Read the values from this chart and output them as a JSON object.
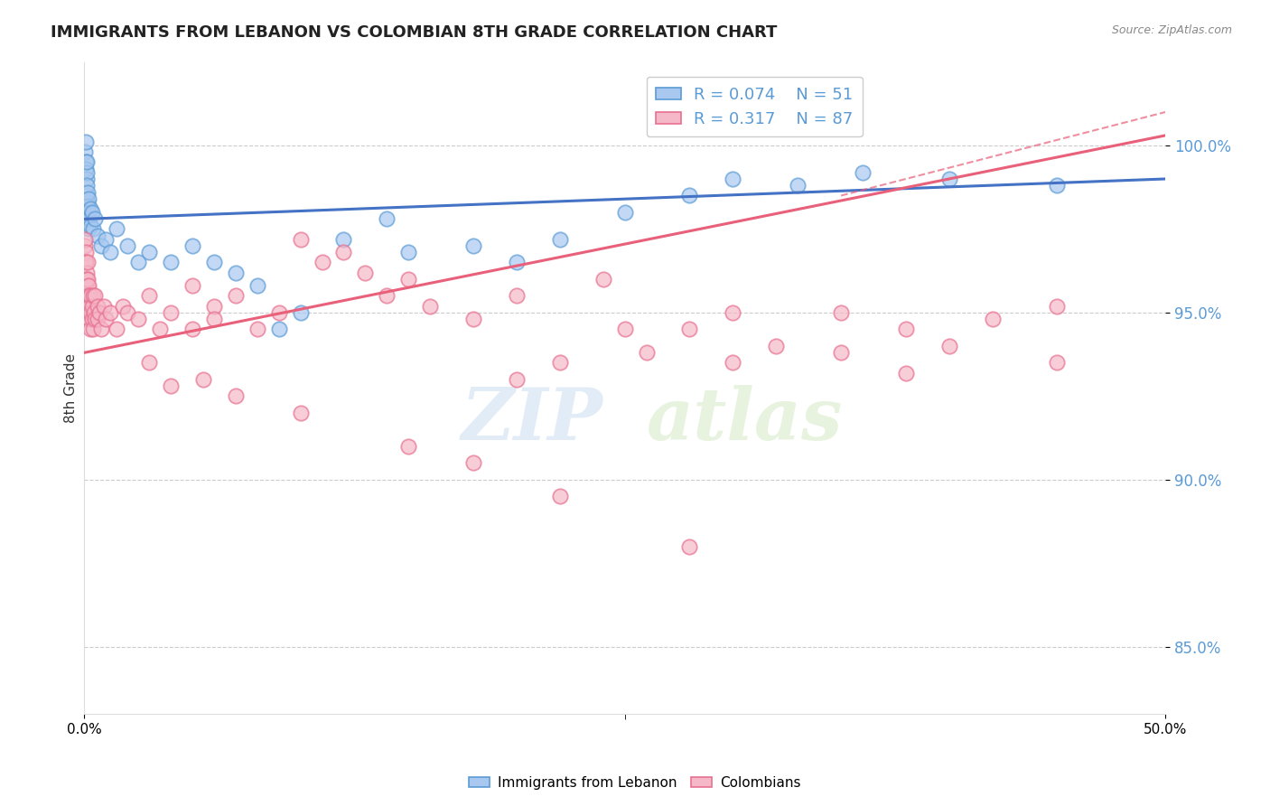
{
  "title": "IMMIGRANTS FROM LEBANON VS COLOMBIAN 8TH GRADE CORRELATION CHART",
  "source_text": "Source: ZipAtlas.com",
  "ylabel": "8th Grade",
  "xlim": [
    0.0,
    50.0
  ],
  "ylim": [
    83.0,
    102.5
  ],
  "yticks": [
    85.0,
    90.0,
    95.0,
    100.0
  ],
  "ytick_labels": [
    "85.0%",
    "90.0%",
    "95.0%",
    "100.0%"
  ],
  "legend_entries": [
    {
      "label": "Immigrants from Lebanon",
      "R": 0.074,
      "N": 51,
      "color": "#a8c8f0",
      "edge": "#5b9bd5"
    },
    {
      "label": "Colombians",
      "R": 0.317,
      "N": 87,
      "color": "#f5b8c8",
      "edge": "#e87090"
    }
  ],
  "blue_color": "#4472c4",
  "pink_color": "#e8607a",
  "watermark_text": "ZIP",
  "watermark_text2": "atlas",
  "leb_trend": [
    97.8,
    99.0
  ],
  "col_trend": [
    93.8,
    100.3
  ],
  "lebanon_points": [
    [
      0.05,
      99.8
    ],
    [
      0.07,
      99.5
    ],
    [
      0.08,
      100.1
    ],
    [
      0.09,
      99.3
    ],
    [
      0.1,
      99.0
    ],
    [
      0.1,
      98.5
    ],
    [
      0.11,
      99.2
    ],
    [
      0.12,
      98.8
    ],
    [
      0.13,
      99.5
    ],
    [
      0.15,
      98.3
    ],
    [
      0.15,
      97.9
    ],
    [
      0.16,
      98.6
    ],
    [
      0.18,
      98.2
    ],
    [
      0.18,
      97.8
    ],
    [
      0.2,
      98.0
    ],
    [
      0.2,
      97.5
    ],
    [
      0.22,
      98.4
    ],
    [
      0.25,
      97.8
    ],
    [
      0.28,
      98.1
    ],
    [
      0.3,
      97.6
    ],
    [
      0.35,
      98.0
    ],
    [
      0.4,
      97.5
    ],
    [
      0.5,
      97.8
    ],
    [
      0.6,
      97.3
    ],
    [
      0.8,
      97.0
    ],
    [
      1.0,
      97.2
    ],
    [
      1.2,
      96.8
    ],
    [
      1.5,
      97.5
    ],
    [
      2.0,
      97.0
    ],
    [
      2.5,
      96.5
    ],
    [
      3.0,
      96.8
    ],
    [
      4.0,
      96.5
    ],
    [
      5.0,
      97.0
    ],
    [
      6.0,
      96.5
    ],
    [
      7.0,
      96.2
    ],
    [
      8.0,
      95.8
    ],
    [
      9.0,
      94.5
    ],
    [
      10.0,
      95.0
    ],
    [
      12.0,
      97.2
    ],
    [
      14.0,
      97.8
    ],
    [
      15.0,
      96.8
    ],
    [
      18.0,
      97.0
    ],
    [
      20.0,
      96.5
    ],
    [
      22.0,
      97.2
    ],
    [
      25.0,
      98.0
    ],
    [
      28.0,
      98.5
    ],
    [
      30.0,
      99.0
    ],
    [
      33.0,
      98.8
    ],
    [
      36.0,
      99.2
    ],
    [
      40.0,
      99.0
    ],
    [
      45.0,
      98.8
    ]
  ],
  "colombian_points": [
    [
      0.03,
      97.0
    ],
    [
      0.04,
      96.5
    ],
    [
      0.05,
      97.2
    ],
    [
      0.06,
      96.8
    ],
    [
      0.07,
      96.0
    ],
    [
      0.08,
      96.5
    ],
    [
      0.09,
      95.8
    ],
    [
      0.1,
      96.2
    ],
    [
      0.1,
      95.5
    ],
    [
      0.12,
      96.0
    ],
    [
      0.13,
      95.2
    ],
    [
      0.15,
      96.5
    ],
    [
      0.15,
      95.8
    ],
    [
      0.16,
      95.2
    ],
    [
      0.17,
      96.0
    ],
    [
      0.18,
      95.5
    ],
    [
      0.2,
      95.8
    ],
    [
      0.2,
      95.0
    ],
    [
      0.22,
      95.5
    ],
    [
      0.25,
      95.2
    ],
    [
      0.25,
      94.8
    ],
    [
      0.28,
      95.5
    ],
    [
      0.3,
      95.0
    ],
    [
      0.3,
      94.5
    ],
    [
      0.35,
      95.2
    ],
    [
      0.35,
      94.8
    ],
    [
      0.4,
      95.5
    ],
    [
      0.4,
      94.5
    ],
    [
      0.45,
      95.0
    ],
    [
      0.5,
      94.8
    ],
    [
      0.5,
      95.5
    ],
    [
      0.6,
      95.2
    ],
    [
      0.6,
      94.8
    ],
    [
      0.7,
      95.0
    ],
    [
      0.8,
      94.5
    ],
    [
      0.9,
      95.2
    ],
    [
      1.0,
      94.8
    ],
    [
      1.2,
      95.0
    ],
    [
      1.5,
      94.5
    ],
    [
      1.8,
      95.2
    ],
    [
      2.0,
      95.0
    ],
    [
      2.5,
      94.8
    ],
    [
      3.0,
      95.5
    ],
    [
      3.5,
      94.5
    ],
    [
      4.0,
      95.0
    ],
    [
      5.0,
      94.5
    ],
    [
      5.0,
      95.8
    ],
    [
      6.0,
      95.2
    ],
    [
      6.0,
      94.8
    ],
    [
      7.0,
      95.5
    ],
    [
      8.0,
      94.5
    ],
    [
      9.0,
      95.0
    ],
    [
      10.0,
      97.2
    ],
    [
      11.0,
      96.5
    ],
    [
      12.0,
      96.8
    ],
    [
      13.0,
      96.2
    ],
    [
      14.0,
      95.5
    ],
    [
      15.0,
      96.0
    ],
    [
      16.0,
      95.2
    ],
    [
      18.0,
      94.8
    ],
    [
      20.0,
      93.0
    ],
    [
      20.0,
      95.5
    ],
    [
      22.0,
      93.5
    ],
    [
      24.0,
      96.0
    ],
    [
      25.0,
      94.5
    ],
    [
      26.0,
      93.8
    ],
    [
      28.0,
      94.5
    ],
    [
      30.0,
      95.0
    ],
    [
      30.0,
      93.5
    ],
    [
      32.0,
      94.0
    ],
    [
      35.0,
      93.8
    ],
    [
      35.0,
      95.0
    ],
    [
      38.0,
      94.5
    ],
    [
      38.0,
      93.2
    ],
    [
      40.0,
      94.0
    ],
    [
      42.0,
      94.8
    ],
    [
      45.0,
      93.5
    ],
    [
      45.0,
      95.2
    ],
    [
      3.0,
      93.5
    ],
    [
      4.0,
      92.8
    ],
    [
      5.5,
      93.0
    ],
    [
      7.0,
      92.5
    ],
    [
      10.0,
      92.0
    ],
    [
      15.0,
      91.0
    ],
    [
      18.0,
      90.5
    ],
    [
      22.0,
      89.5
    ],
    [
      28.0,
      88.0
    ]
  ]
}
